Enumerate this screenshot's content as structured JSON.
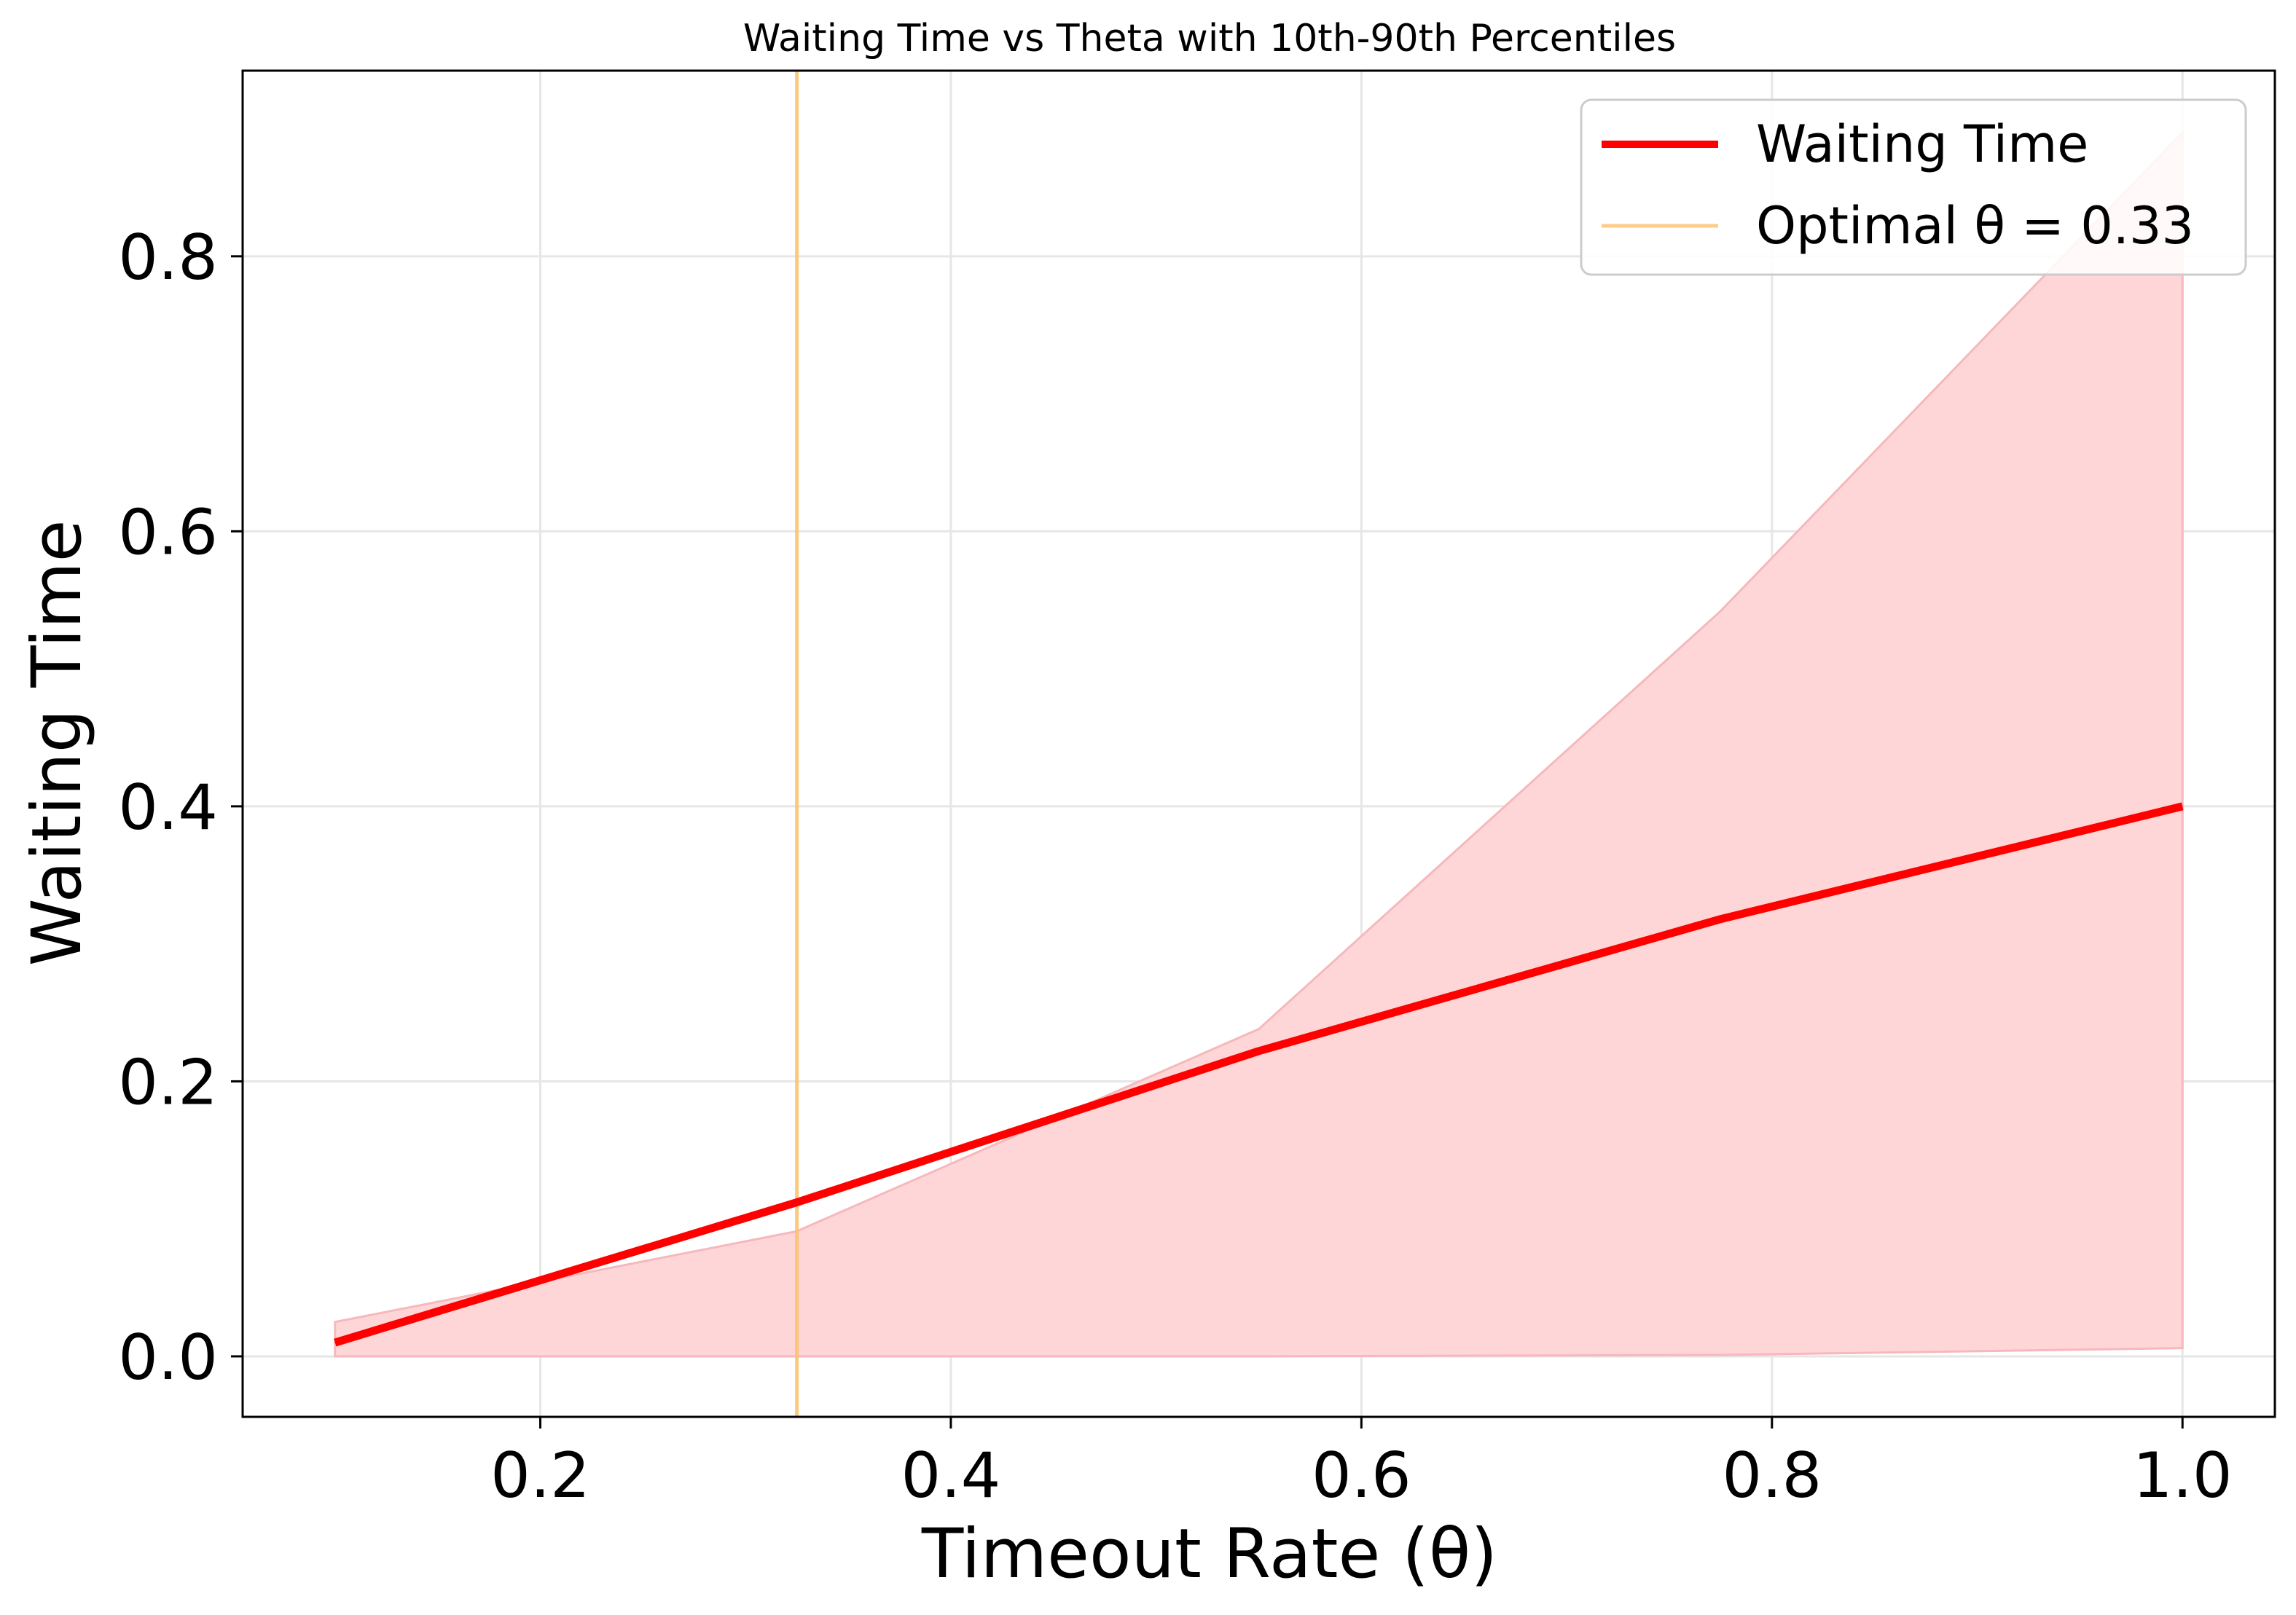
{
  "chart_data": {
    "type": "line",
    "title": "Waiting Time vs Theta with 10th-90th Percentiles",
    "xlabel": "Timeout Rate (θ)",
    "ylabel": "Waiting Time",
    "xlim": [
      0.055,
      1.045
    ],
    "ylim": [
      -0.044,
      0.935
    ],
    "x_ticks": [
      0.2,
      0.4,
      0.6,
      0.8,
      1.0
    ],
    "x_tick_labels": [
      "0.2",
      "0.4",
      "0.6",
      "0.8",
      "1.0"
    ],
    "y_ticks": [
      0.0,
      0.2,
      0.4,
      0.6,
      0.8
    ],
    "y_tick_labels": [
      "0.0",
      "0.2",
      "0.4",
      "0.6",
      "0.8"
    ],
    "grid": true,
    "legend_position": "top-right",
    "series": [
      {
        "name": "Waiting Time",
        "color": "#ff0000",
        "x": [
          0.1,
          0.325,
          0.55,
          0.775,
          1.0
        ],
        "y": [
          0.01,
          0.112,
          0.222,
          0.318,
          0.4
        ]
      }
    ],
    "band": {
      "label": "10th-90th Percentiles",
      "color": "#ffd6d8",
      "edge_color": "#f6b8bb",
      "x": [
        0.1,
        0.325,
        0.55,
        0.775,
        1.0
      ],
      "lower": [
        0.0,
        0.0,
        0.0,
        0.001,
        0.006
      ],
      "upper": [
        0.025,
        0.091,
        0.238,
        0.542,
        0.89
      ]
    },
    "vline": {
      "name": "Optimal θ = 0.33",
      "x": 0.325,
      "color": "#fbbf6a"
    }
  }
}
